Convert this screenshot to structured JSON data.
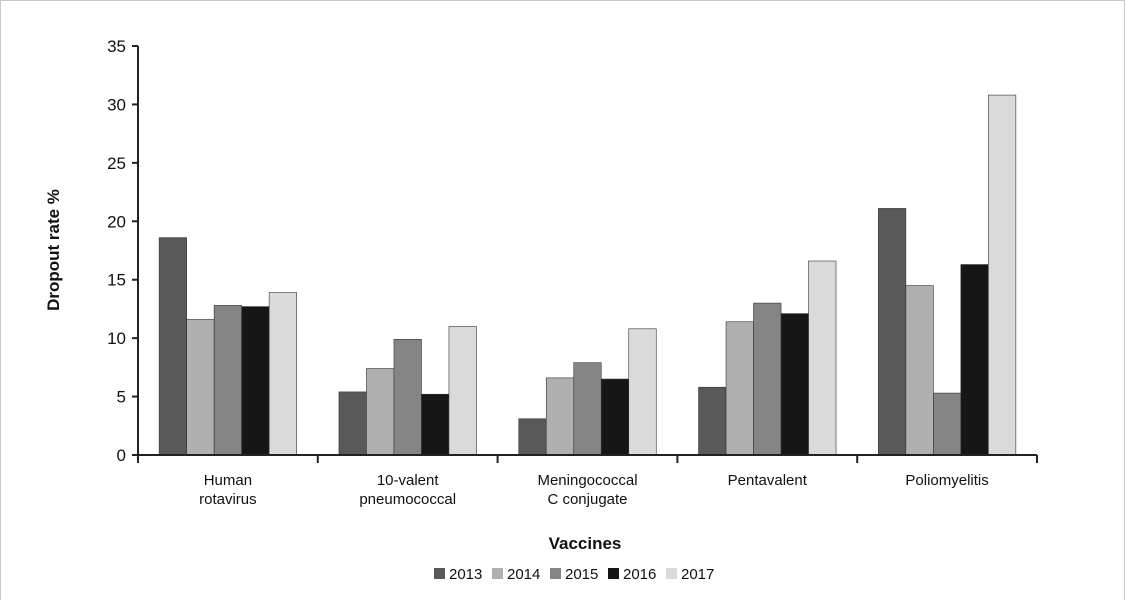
{
  "chart_data": {
    "type": "bar",
    "title": "",
    "xlabel": "Vaccines",
    "ylabel": "Dropout rate %",
    "ylim": [
      0,
      35
    ],
    "yticks": [
      0,
      5,
      10,
      15,
      20,
      25,
      30,
      35
    ],
    "grid": false,
    "legend_position": "bottom",
    "categories": [
      [
        "Human",
        "rotavirus"
      ],
      [
        "10-valent",
        "pneumococcal"
      ],
      [
        "Meningococcal",
        "C conjugate"
      ],
      [
        "Pentavalent"
      ],
      [
        "Poliomyelitis"
      ]
    ],
    "series": [
      {
        "name": "2013",
        "color": "#595959",
        "values": [
          18.6,
          5.4,
          3.1,
          5.8,
          21.1
        ]
      },
      {
        "name": "2014",
        "color": "#b0b0b0",
        "values": [
          11.6,
          7.4,
          6.6,
          11.4,
          14.5
        ]
      },
      {
        "name": "2015",
        "color": "#858585",
        "values": [
          12.8,
          9.9,
          7.9,
          13.0,
          5.3
        ]
      },
      {
        "name": "2016",
        "color": "#161616",
        "values": [
          12.7,
          5.2,
          6.5,
          12.1,
          16.3
        ]
      },
      {
        "name": "2017",
        "color": "#dadada",
        "values": [
          13.9,
          11.0,
          10.8,
          16.6,
          30.8
        ]
      }
    ]
  }
}
